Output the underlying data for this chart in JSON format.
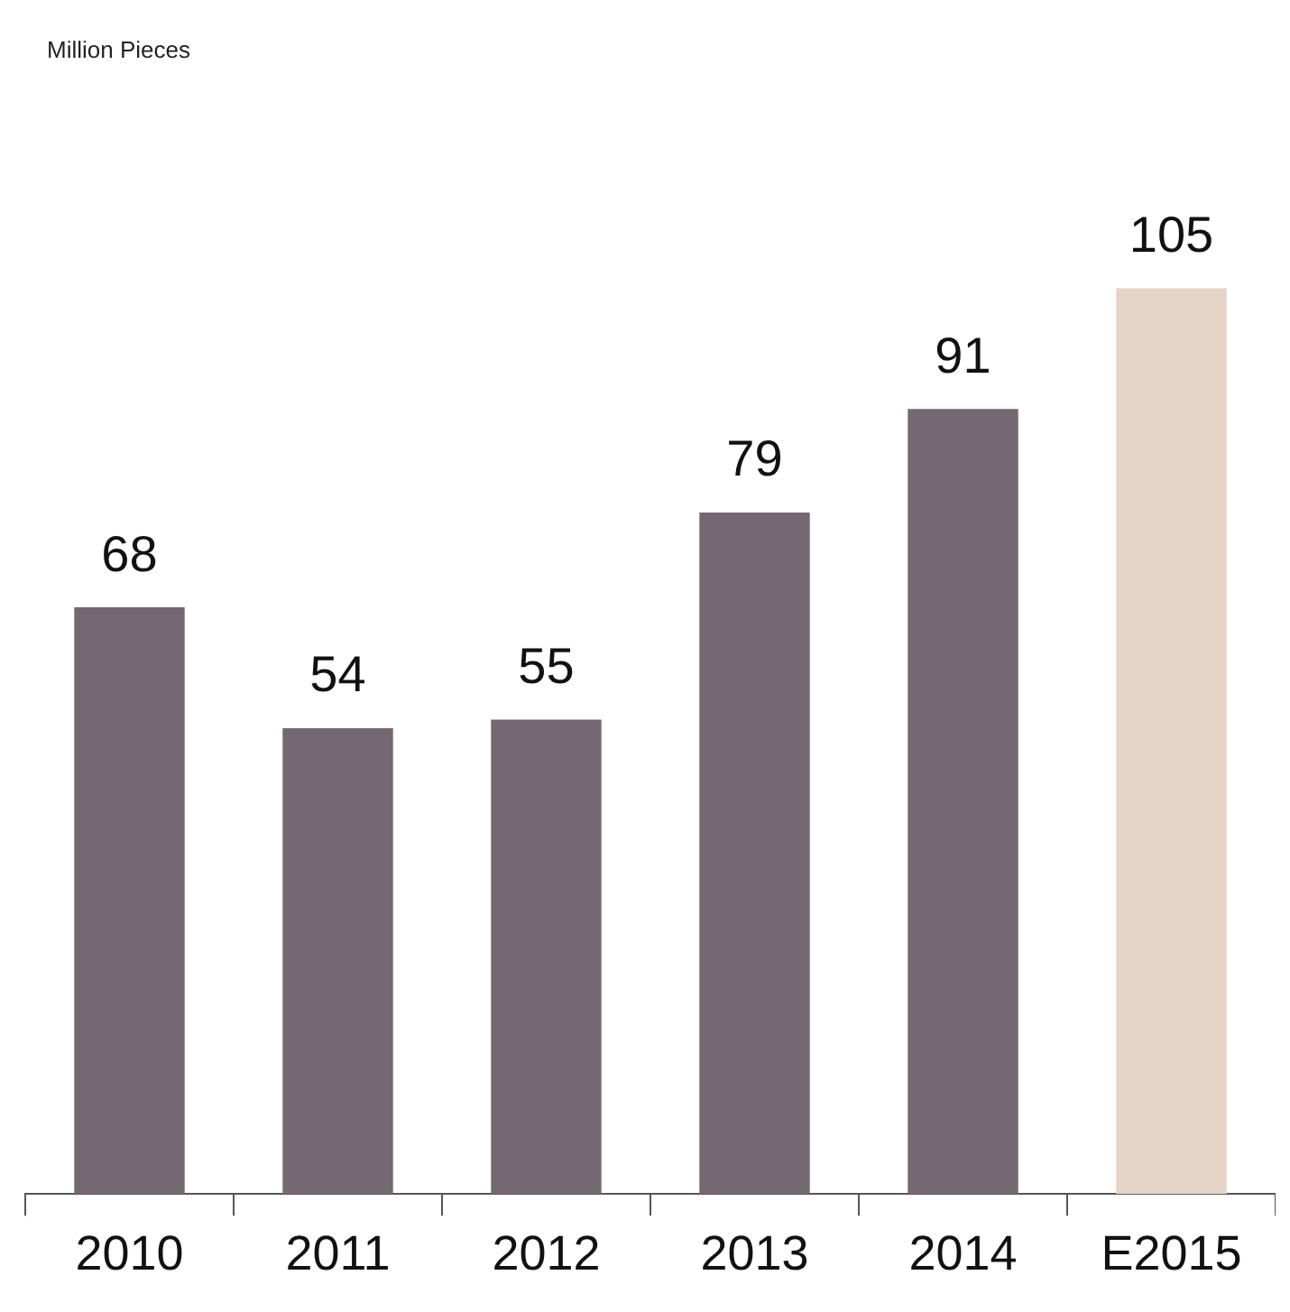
{
  "chart_data": {
    "type": "bar",
    "annotations": [
      "Million Pieces"
    ],
    "categories": [
      "2010",
      "2011",
      "2012",
      "2013",
      "2014",
      "E2015"
    ],
    "values": [
      68,
      54,
      55,
      79,
      91,
      105
    ],
    "colors": [
      "#756873",
      "#756873",
      "#756873",
      "#756873",
      "#756873",
      "#e5d3c6"
    ],
    "tick_labels": "x",
    "data_labels": true,
    "grid": false,
    "legend": false
  }
}
